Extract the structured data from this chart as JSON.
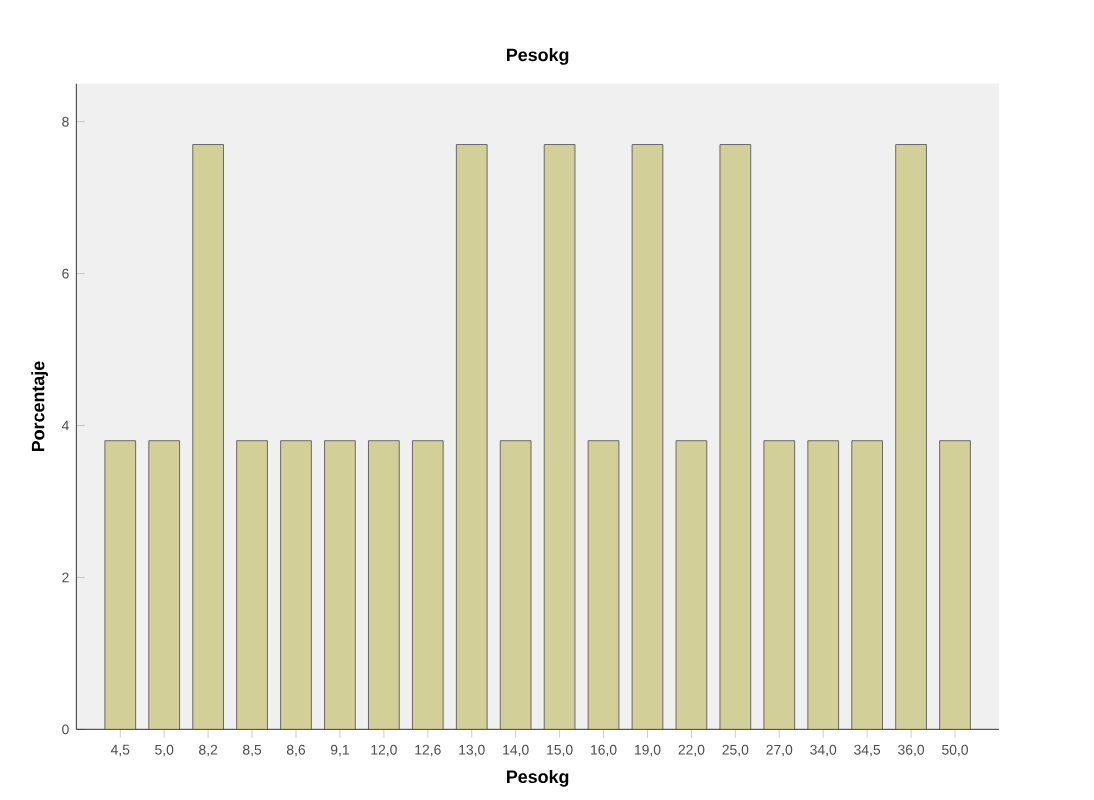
{
  "chart_data": {
    "type": "bar",
    "title": "Pesokg",
    "xlabel": "Pesokg",
    "ylabel": "Porcentaje",
    "categories": [
      "4,5",
      "5,0",
      "8,2",
      "8,5",
      "8,6",
      "9,1",
      "12,0",
      "12,6",
      "13,0",
      "14,0",
      "15,0",
      "16,0",
      "19,0",
      "22,0",
      "25,0",
      "27,0",
      "34,0",
      "34,5",
      "36,0",
      "50,0"
    ],
    "values": [
      3.8,
      3.8,
      7.7,
      3.8,
      3.8,
      3.8,
      3.8,
      3.8,
      7.7,
      3.8,
      7.7,
      3.8,
      7.7,
      3.8,
      7.7,
      3.8,
      3.8,
      3.8,
      7.7,
      3.8
    ],
    "color": "#d3cf98",
    "ylim": [
      0,
      8.5
    ],
    "yticks": [
      0,
      2,
      4,
      6,
      8
    ],
    "grid": false
  }
}
